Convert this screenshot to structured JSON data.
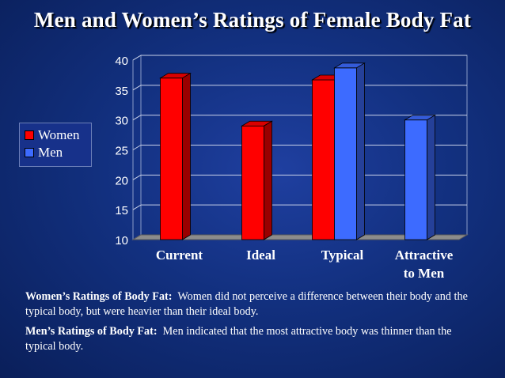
{
  "slide": {
    "title": "Men and Women’s Ratings of Female Body Fat"
  },
  "colors": {
    "women": "#ff0000",
    "men": "#3d6bff",
    "background": "#12307f"
  },
  "chart_data": {
    "type": "bar",
    "title": "Men and Women’s Ratings of Female Body Fat",
    "categories": [
      "Current",
      "Ideal",
      "Typical",
      "Attractive to Men"
    ],
    "category_lines": [
      [
        "Current"
      ],
      [
        "Ideal"
      ],
      [
        "Typical"
      ],
      [
        "Attractive",
        "to Men"
      ]
    ],
    "series": [
      {
        "name": "Women",
        "values": [
          37,
          29,
          36.7,
          null
        ],
        "color": "#ff0000"
      },
      {
        "name": "Men",
        "values": [
          null,
          null,
          38.7,
          30
        ],
        "color": "#3d6bff"
      }
    ],
    "yticks": [
      10,
      15,
      20,
      25,
      30,
      35,
      40
    ],
    "ylim": [
      10,
      40
    ],
    "xlabel": "",
    "ylabel": "",
    "grid": true,
    "legend": "left",
    "style": "3d"
  },
  "notes": [
    {
      "label": "Women’s Ratings of Body Fat:",
      "text": "Women did not perceive a difference between their body and the typical body, but were heavier than their ideal body."
    },
    {
      "label": "Men’s Ratings of Body Fat:",
      "text": "Men indicated that the most attractive body was thinner than the typical body."
    }
  ]
}
